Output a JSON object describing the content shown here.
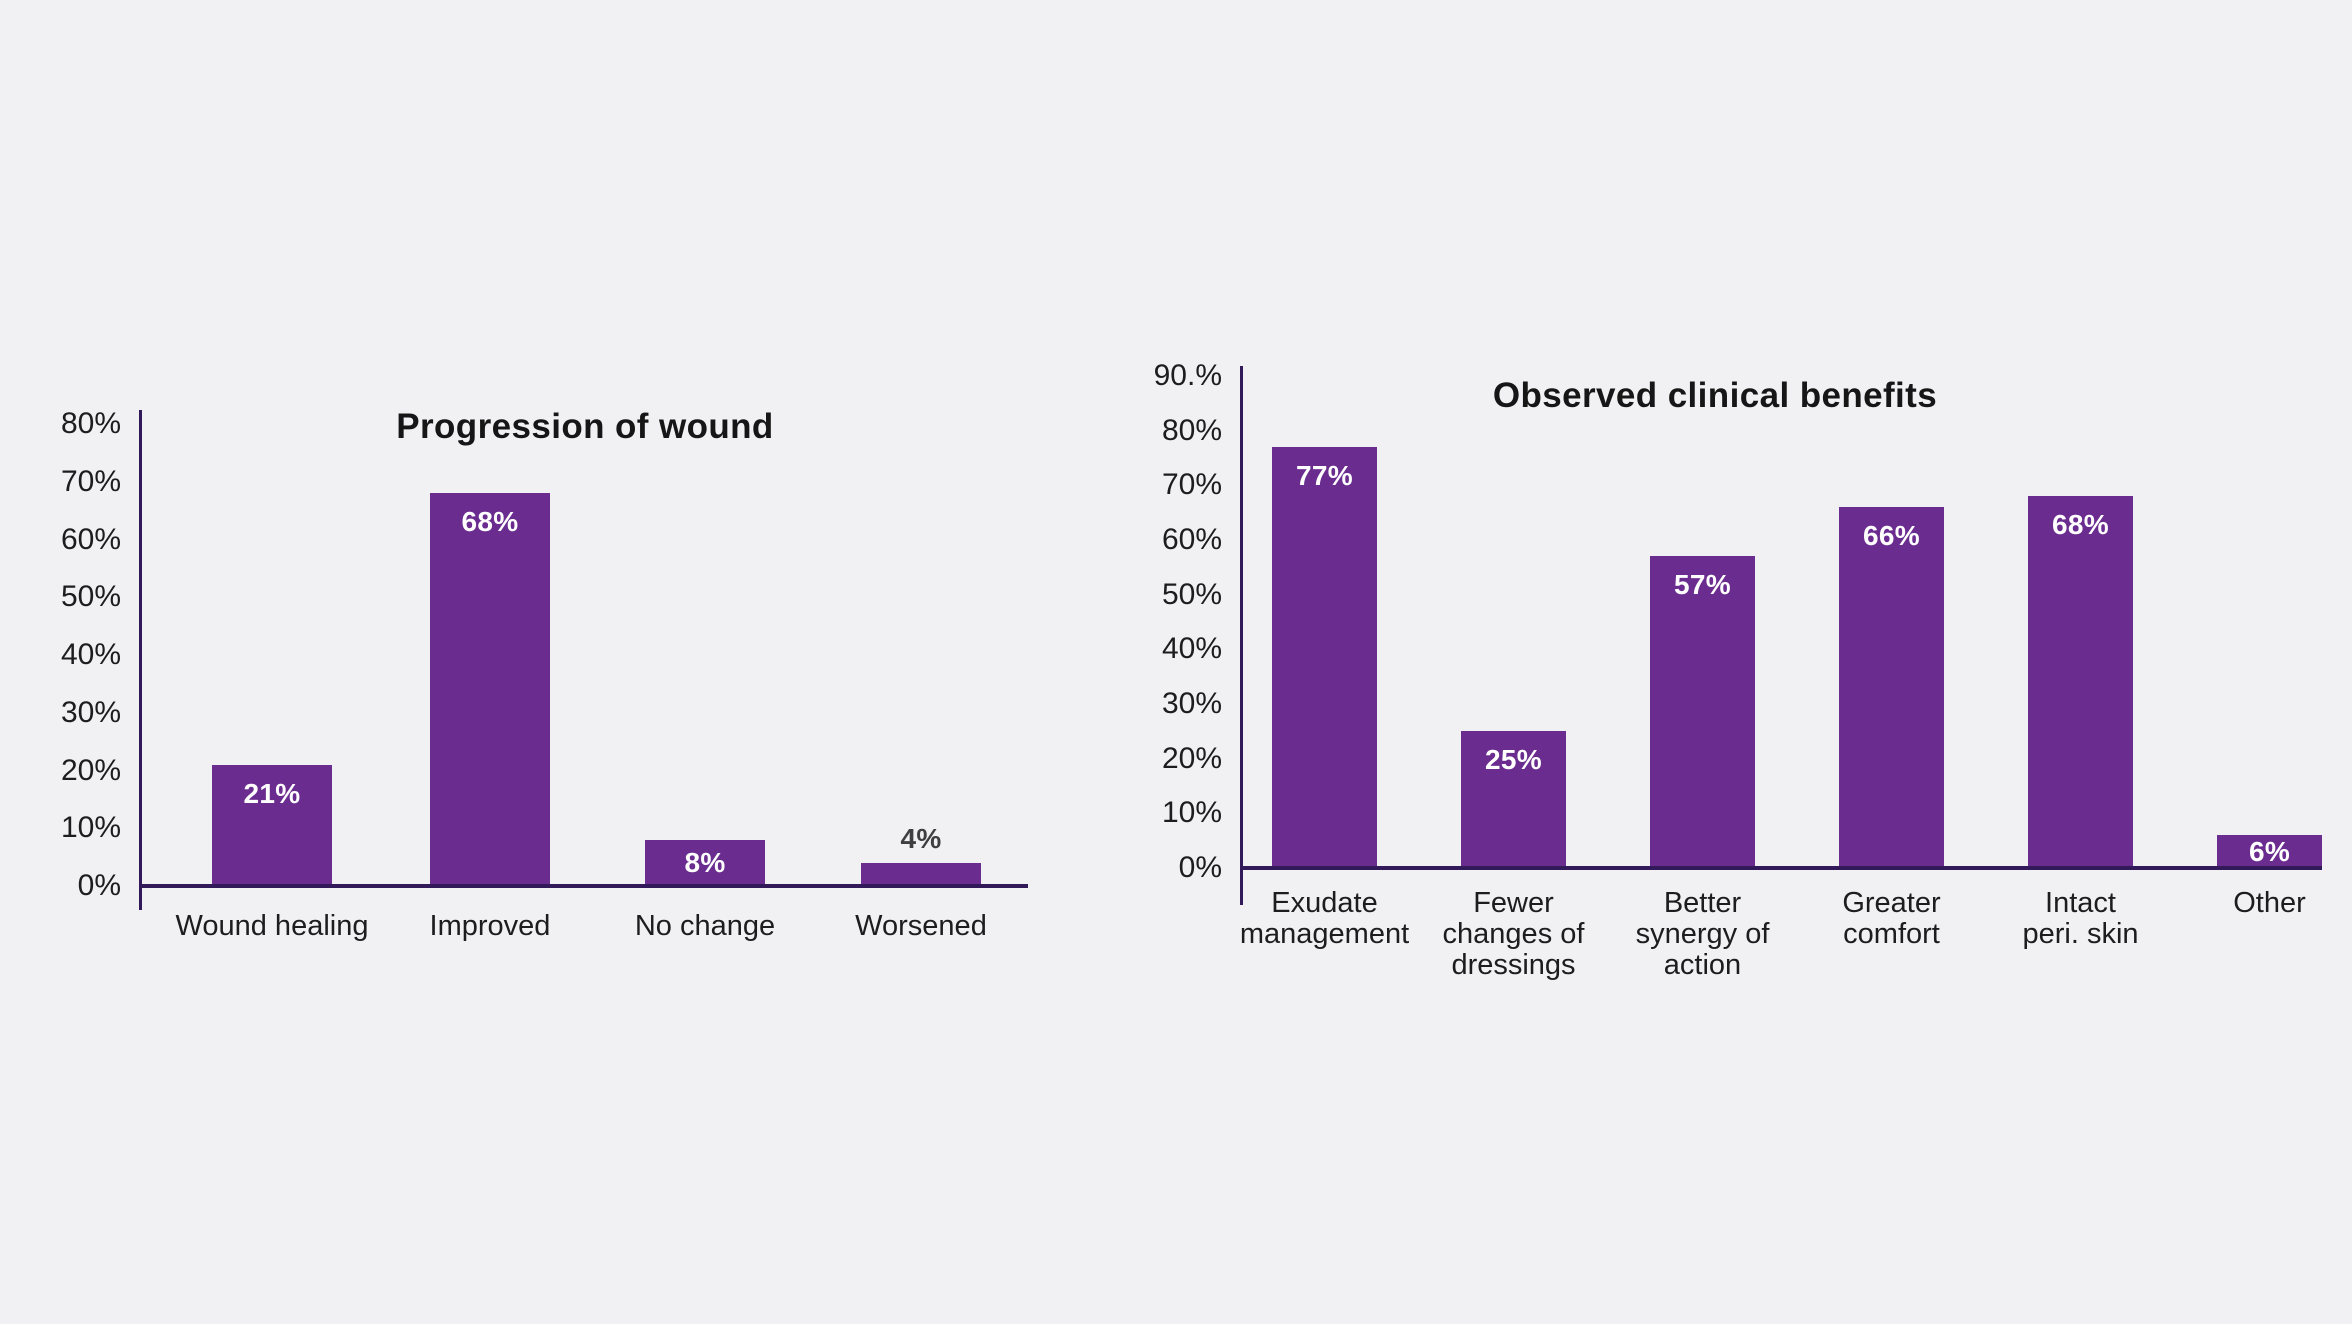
{
  "page": {
    "background_color": "#f1f1f4",
    "bar_color": "#6b2c90",
    "axis_color": "#31195a",
    "value_label_color_inside": "#ffffff",
    "value_label_color_outside": "#3f3f41",
    "text_color": "#1d1d1f"
  },
  "chart_data": [
    {
      "type": "bar",
      "title": "Progression of wound",
      "categories": [
        "Wound healing",
        "Improved",
        "No change",
        "Worsened"
      ],
      "values": [
        21,
        68,
        8,
        4
      ],
      "value_labels": [
        "21%",
        "68%",
        "8%",
        "4%"
      ],
      "value_label_placement": [
        "inside-top",
        "inside-top",
        "inside-center",
        "above"
      ],
      "xlabel": "",
      "ylabel": "",
      "ylim": [
        0,
        80
      ],
      "y_tick_step": 10,
      "y_ticks": [
        "0%",
        "10%",
        "20%",
        "30%",
        "40%",
        "50%",
        "60%",
        "70%",
        "80%"
      ],
      "grid": false,
      "legend": null,
      "bar_color": "#6b2c90"
    },
    {
      "type": "bar",
      "title": "Observed clinical benefits",
      "categories": [
        "Exudate\nmanagement",
        "Fewer\nchanges of\ndressings",
        "Better\nsynergy of\naction",
        "Greater\ncomfort",
        "Intact\nperi. skin",
        "Other"
      ],
      "values": [
        77,
        25,
        57,
        66,
        68,
        6
      ],
      "value_labels": [
        "77%",
        "25%",
        "57%",
        "66%",
        "68%",
        "6%"
      ],
      "value_label_placement": [
        "inside-top",
        "inside-top",
        "inside-top",
        "inside-top",
        "inside-top",
        "inside-center"
      ],
      "xlabel": "",
      "ylabel": "",
      "ylim": [
        0,
        90
      ],
      "y_tick_step": 10,
      "y_ticks": [
        "0%",
        "10%",
        "20%",
        "30%",
        "40%",
        "50%",
        "60%",
        "70%",
        "80%",
        "90.%"
      ],
      "grid": false,
      "legend": null,
      "bar_color": "#6b2c90"
    }
  ]
}
